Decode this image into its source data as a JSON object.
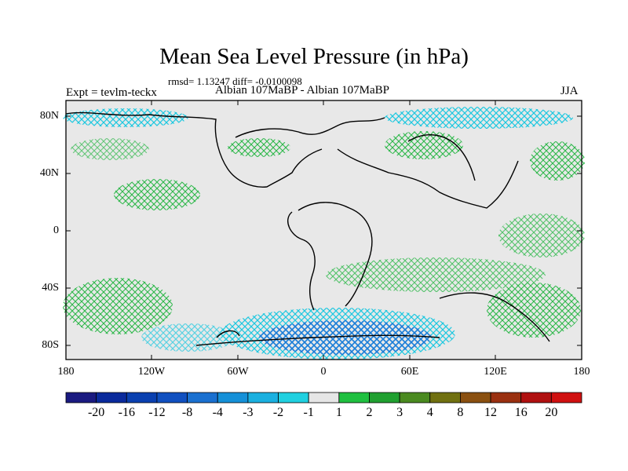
{
  "title": "Mean Sea Level Pressure (in hPa)",
  "stats": "rmsd= 1.13247 diff= -0.0100098",
  "left_label": "Expt = tevlm-teckx",
  "center_label": "Albian   107MaBP - Albian   107MaBP",
  "right_label": "JJA",
  "map": {
    "lat_ticks": [
      "80N",
      "40N",
      "0",
      "40S",
      "80S"
    ],
    "lon_ticks": [
      "180",
      "120W",
      "60W",
      "0",
      "60E",
      "120E",
      "180"
    ],
    "colors": {
      "background": "#e8e8e8",
      "frame": "#000000",
      "coast": "#000000"
    }
  },
  "colorbar": {
    "labels": [
      "-20",
      "-16",
      "-12",
      "-8",
      "-4",
      "-3",
      "-2",
      "-1",
      "1",
      "2",
      "3",
      "4",
      "8",
      "12",
      "16",
      "20"
    ],
    "colors": [
      "#1a1a80",
      "#0a2a9c",
      "#0a40b0",
      "#1050c0",
      "#1a70d0",
      "#1590d8",
      "#1ab0e0",
      "#20d0e0",
      "#e6e6e6",
      "#1fc040",
      "#20a030",
      "#4a8a20",
      "#707010",
      "#8a5010",
      "#9a3010",
      "#b01010",
      "#d01010"
    ]
  }
}
